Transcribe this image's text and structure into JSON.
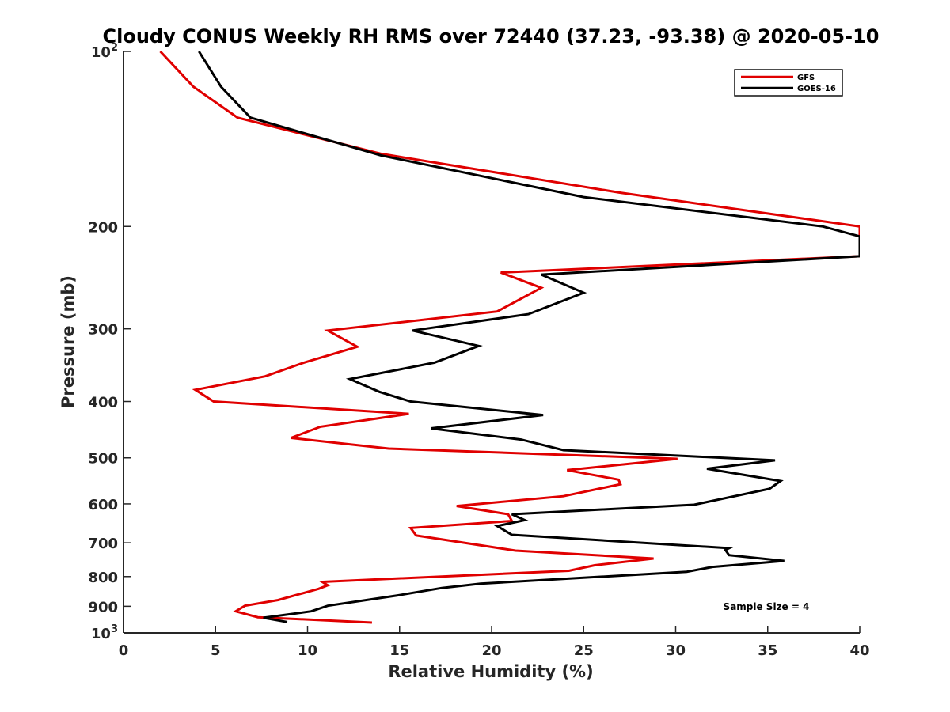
{
  "chart_data": {
    "type": "line",
    "title": "Cloudy CONUS Weekly RH RMS over 72440 (37.23, -93.38) @ 2020-05-10",
    "xlabel": "Relative Humidity (%)",
    "ylabel": "Pressure (mb)",
    "xlim": [
      0,
      40
    ],
    "ylim": [
      100,
      1000
    ],
    "y_scale": "log",
    "y_reversed": true,
    "x_ticks": [
      "0",
      "5",
      "10",
      "15",
      "20",
      "25",
      "30",
      "35",
      "40"
    ],
    "y_ticks": [
      {
        "value": 100,
        "base": "10",
        "exp": "2"
      },
      {
        "value": 200,
        "label": "200"
      },
      {
        "value": 300,
        "label": "300"
      },
      {
        "value": 400,
        "label": "400"
      },
      {
        "value": 500,
        "label": "500"
      },
      {
        "value": 600,
        "label": "600"
      },
      {
        "value": 700,
        "label": "700"
      },
      {
        "value": 800,
        "label": "800"
      },
      {
        "value": 900,
        "label": "900"
      },
      {
        "value": 1000,
        "base": "10",
        "exp": "3"
      }
    ],
    "legend_position": "top-right",
    "annotation": "Sample Size = 4",
    "series": [
      {
        "name": "GFS",
        "color": "#e00000",
        "points": [
          [
            2.0,
            100
          ],
          [
            3.8,
            115
          ],
          [
            6.2,
            130
          ],
          [
            14.0,
            150
          ],
          [
            27.0,
            175
          ],
          [
            40.0,
            200
          ],
          [
            40.0,
            225
          ],
          [
            20.5,
            240
          ],
          [
            22.7,
            255
          ],
          [
            20.3,
            280
          ],
          [
            11.1,
            302
          ],
          [
            12.7,
            322
          ],
          [
            9.8,
            343
          ],
          [
            7.7,
            362
          ],
          [
            3.9,
            382
          ],
          [
            4.9,
            400
          ],
          [
            15.5,
            420
          ],
          [
            10.7,
            442
          ],
          [
            9.1,
            462
          ],
          [
            14.4,
            482
          ],
          [
            30.1,
            502
          ],
          [
            24.1,
            525
          ],
          [
            26.9,
            545
          ],
          [
            27.0,
            555
          ],
          [
            23.9,
            582
          ],
          [
            18.1,
            605
          ],
          [
            20.9,
            625
          ],
          [
            21.1,
            642
          ],
          [
            15.6,
            660
          ],
          [
            15.9,
            680
          ],
          [
            21.3,
            722
          ],
          [
            28.8,
            745
          ],
          [
            25.6,
            765
          ],
          [
            24.2,
            782
          ],
          [
            10.8,
            817
          ],
          [
            11.1,
            828
          ],
          [
            10.6,
            840
          ],
          [
            8.4,
            878
          ],
          [
            6.6,
            898
          ],
          [
            6.1,
            918
          ],
          [
            7.3,
            940
          ],
          [
            13.5,
            960
          ]
        ]
      },
      {
        "name": "GOES-16",
        "color": "#000000",
        "points": [
          [
            4.1,
            100
          ],
          [
            5.3,
            115
          ],
          [
            6.9,
            130
          ],
          [
            14.0,
            151
          ],
          [
            25.0,
            178
          ],
          [
            38.0,
            200
          ],
          [
            40.0,
            208
          ],
          [
            40.0,
            225
          ],
          [
            22.7,
            242
          ],
          [
            25.0,
            260
          ],
          [
            22.0,
            283
          ],
          [
            15.7,
            302
          ],
          [
            19.3,
            321
          ],
          [
            16.9,
            343
          ],
          [
            12.3,
            366
          ],
          [
            13.9,
            385
          ],
          [
            15.6,
            400
          ],
          [
            22.8,
            422
          ],
          [
            16.7,
            445
          ],
          [
            21.6,
            465
          ],
          [
            23.9,
            485
          ],
          [
            35.4,
            505
          ],
          [
            31.7,
            522
          ],
          [
            35.7,
            548
          ],
          [
            35.1,
            565
          ],
          [
            31.0,
            602
          ],
          [
            21.1,
            625
          ],
          [
            21.8,
            640
          ],
          [
            20.3,
            655
          ],
          [
            21.1,
            678
          ],
          [
            32.9,
            715
          ],
          [
            32.7,
            720
          ],
          [
            32.9,
            735
          ],
          [
            35.9,
            752
          ],
          [
            32.0,
            770
          ],
          [
            30.6,
            785
          ],
          [
            19.4,
            823
          ],
          [
            17.3,
            837
          ],
          [
            14.9,
            862
          ],
          [
            11.1,
            898
          ],
          [
            10.2,
            918
          ],
          [
            7.6,
            942
          ],
          [
            8.9,
            958
          ]
        ]
      }
    ]
  }
}
